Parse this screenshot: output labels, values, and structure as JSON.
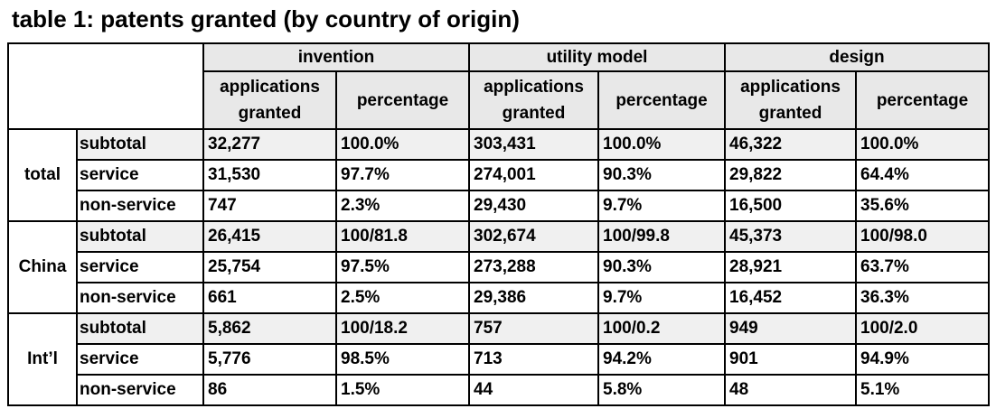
{
  "title": "table 1: patents granted (by country of origin)",
  "categories": [
    "invention",
    "utility model",
    "design"
  ],
  "subheaders": {
    "applications_granted": "applications granted",
    "percentage": "percentage"
  },
  "groups": [
    {
      "label": "total",
      "rows": [
        {
          "label": "subtotal",
          "values": [
            "32,277",
            "100.0%",
            "303,431",
            "100.0%",
            "46,322",
            "100.0%"
          ]
        },
        {
          "label": "service",
          "values": [
            "31,530",
            "97.7%",
            "274,001",
            "90.3%",
            "29,822",
            "64.4%"
          ]
        },
        {
          "label": "non-service",
          "values": [
            "747",
            "2.3%",
            "29,430",
            "9.7%",
            "16,500",
            "35.6%"
          ]
        }
      ]
    },
    {
      "label": "China",
      "rows": [
        {
          "label": "subtotal",
          "values": [
            "26,415",
            "100/81.8",
            "302,674",
            "100/99.8",
            "45,373",
            "100/98.0"
          ]
        },
        {
          "label": "service",
          "values": [
            "25,754",
            "97.5%",
            "273,288",
            "90.3%",
            "28,921",
            "63.7%"
          ]
        },
        {
          "label": "non-service",
          "values": [
            "661",
            "2.5%",
            "29,386",
            "9.7%",
            "16,452",
            "36.3%"
          ]
        }
      ]
    },
    {
      "label": "Int’l",
      "rows": [
        {
          "label": "subtotal",
          "values": [
            "5,862",
            "100/18.2",
            "757",
            "100/0.2",
            "949",
            "100/2.0"
          ]
        },
        {
          "label": "service",
          "values": [
            "5,776",
            "98.5%",
            "713",
            "94.2%",
            "901",
            "94.9%"
          ]
        },
        {
          "label": "non-service",
          "values": [
            "86",
            "1.5%",
            "44",
            "5.8%",
            "48",
            "5.1%"
          ]
        }
      ]
    }
  ]
}
